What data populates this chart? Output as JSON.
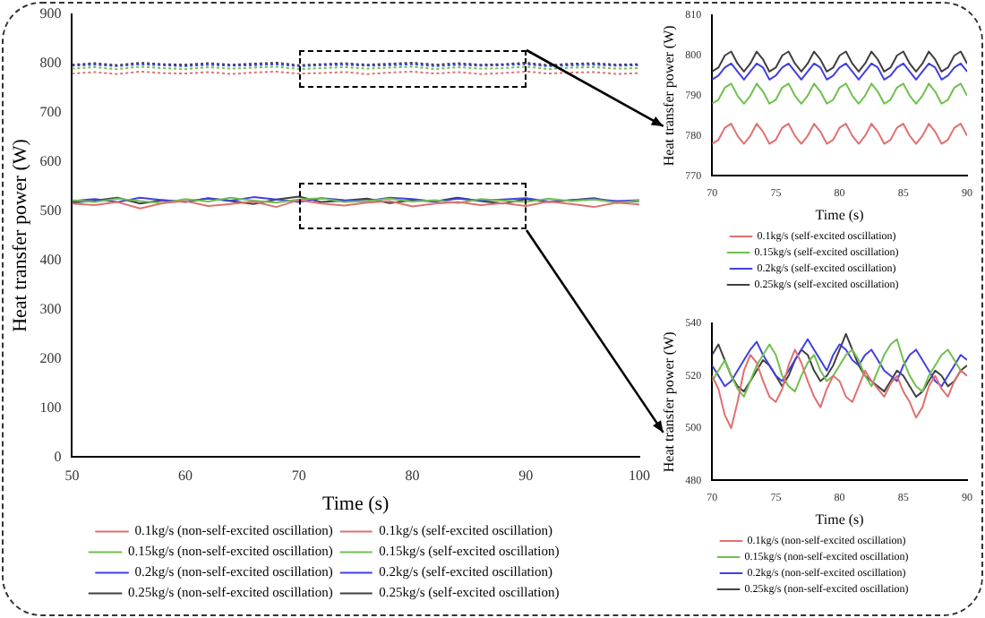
{
  "chart_data": [
    {
      "type": "line",
      "xlabel": "Time (s)",
      "ylabel": "Heat transfer power (W)",
      "xlim": [
        50,
        100
      ],
      "ylim": [
        0,
        900
      ],
      "xticks": [
        50,
        60,
        70,
        80,
        90,
        100
      ],
      "yticks": [
        0,
        100,
        200,
        300,
        400,
        500,
        600,
        700,
        800,
        900
      ],
      "grid": false,
      "legend": "bottom",
      "marker": "none",
      "x": [
        50,
        52,
        54,
        56,
        58,
        60,
        62,
        64,
        66,
        68,
        70,
        72,
        74,
        76,
        78,
        80,
        82,
        84,
        86,
        88,
        90,
        92,
        94,
        96,
        98,
        100
      ],
      "series": [
        {
          "name": "0.1kg/s (non-self-excited oscillation)",
          "color": "#e07070",
          "line_style": "solid",
          "values": [
            515,
            512,
            518,
            505,
            516,
            520,
            510,
            514,
            519,
            508,
            522,
            515,
            511,
            517,
            520,
            509,
            515,
            518,
            512,
            516,
            510,
            519,
            514,
            508,
            517,
            513
          ]
        },
        {
          "name": "0.1kg/s (self-excited oscillation)",
          "color": "#e07070",
          "line_style": "dotted",
          "values": [
            779,
            782,
            778,
            783,
            780,
            779,
            782,
            778,
            781,
            783,
            779,
            780,
            782,
            778,
            781,
            783,
            779,
            782,
            778,
            780,
            783,
            779,
            781,
            782,
            778,
            780
          ]
        },
        {
          "name": "0.15kg/s (non-self-excited oscillation)",
          "color": "#70c050",
          "line_style": "solid",
          "values": [
            522,
            518,
            525,
            520,
            516,
            524,
            519,
            527,
            521,
            517,
            523,
            526,
            518,
            520,
            525,
            519,
            522,
            516,
            524,
            521,
            518,
            525,
            520,
            523,
            517,
            521
          ]
        },
        {
          "name": "0.15kg/s (self-excited oscillation)",
          "color": "#70c050",
          "line_style": "dotted",
          "values": [
            789,
            792,
            788,
            793,
            790,
            788,
            792,
            789,
            791,
            793,
            788,
            790,
            792,
            789,
            791,
            793,
            788,
            792,
            789,
            790,
            793,
            788,
            791,
            792,
            789,
            790
          ]
        },
        {
          "name": "0.2kg/s (non-self-excited oscillation)",
          "color": "#4040e0",
          "line_style": "solid",
          "values": [
            520,
            524,
            518,
            527,
            522,
            519,
            525,
            521,
            528,
            523,
            518,
            526,
            522,
            520,
            527,
            524,
            519,
            525,
            521,
            523,
            526,
            519,
            522,
            524,
            520,
            522
          ]
        },
        {
          "name": "0.2kg/s (self-excited oscillation)",
          "color": "#4040e0",
          "line_style": "dotted",
          "values": [
            795,
            797,
            794,
            798,
            796,
            794,
            797,
            795,
            796,
            798,
            794,
            796,
            797,
            795,
            796,
            798,
            794,
            797,
            795,
            796,
            798,
            794,
            796,
            797,
            795,
            796
          ]
        },
        {
          "name": "0.25kg/s (non-self-excited oscillation)",
          "color": "#404040",
          "line_style": "solid",
          "values": [
            517,
            521,
            527,
            515,
            522,
            518,
            526,
            520,
            514,
            523,
            529,
            518,
            521,
            525,
            516,
            522,
            519,
            527,
            520,
            515,
            524,
            518,
            522,
            526,
            517,
            520
          ]
        },
        {
          "name": "0.25kg/s (self-excited oscillation)",
          "color": "#404040",
          "line_style": "dotted",
          "values": [
            797,
            800,
            796,
            801,
            798,
            797,
            800,
            797,
            799,
            801,
            796,
            798,
            800,
            797,
            799,
            801,
            797,
            800,
            797,
            798,
            801,
            796,
            799,
            800,
            797,
            798
          ]
        }
      ]
    },
    {
      "type": "line",
      "xlabel": "Time (s)",
      "ylabel": "Heat transfer power (W)",
      "xlim": [
        70,
        90
      ],
      "ylim": [
        770,
        810
      ],
      "xticks": [
        70,
        75,
        80,
        85,
        90
      ],
      "yticks": [
        770,
        780,
        790,
        800,
        810
      ],
      "grid": false,
      "legend": "bottom",
      "marker": "none",
      "line_style": "solid",
      "x": [
        70,
        70.5,
        71,
        71.5,
        72,
        72.5,
        73,
        73.5,
        74,
        74.5,
        75,
        75.5,
        76,
        76.5,
        77,
        77.5,
        78,
        78.5,
        79,
        79.5,
        80,
        80.5,
        81,
        81.5,
        82,
        82.5,
        83,
        83.5,
        84,
        84.5,
        85,
        85.5,
        86,
        86.5,
        87,
        87.5,
        88,
        88.5,
        89,
        89.5,
        90
      ],
      "series": [
        {
          "name": "0.1kg/s (self-excited oscillation)",
          "color": "#e07070",
          "values": [
            778,
            779,
            782,
            783,
            780,
            778,
            780,
            783,
            781,
            778,
            779,
            782,
            783,
            780,
            778,
            780,
            783,
            781,
            778,
            779,
            782,
            783,
            780,
            778,
            780,
            783,
            781,
            778,
            779,
            782,
            783,
            780,
            778,
            780,
            783,
            781,
            778,
            779,
            782,
            783,
            780
          ]
        },
        {
          "name": "0.15kg/s (self-excited oscillation)",
          "color": "#70c050",
          "values": [
            788,
            789,
            792,
            793,
            790,
            788,
            790,
            793,
            791,
            788,
            789,
            792,
            793,
            790,
            788,
            790,
            793,
            791,
            788,
            789,
            792,
            793,
            790,
            788,
            790,
            793,
            791,
            788,
            789,
            792,
            793,
            790,
            788,
            790,
            793,
            791,
            788,
            789,
            792,
            793,
            790
          ]
        },
        {
          "name": "0.2kg/s (self-excited oscillation)",
          "color": "#4040e0",
          "values": [
            794,
            795,
            797,
            798,
            796,
            794,
            796,
            798,
            797,
            794,
            795,
            797,
            798,
            796,
            794,
            796,
            798,
            797,
            794,
            795,
            797,
            798,
            796,
            794,
            796,
            798,
            797,
            794,
            795,
            797,
            798,
            796,
            794,
            796,
            798,
            797,
            794,
            795,
            797,
            798,
            796
          ]
        },
        {
          "name": "0.25kg/s (self-excited oscillation)",
          "color": "#404040",
          "values": [
            796,
            797,
            800,
            801,
            798,
            796,
            798,
            801,
            799,
            796,
            797,
            800,
            801,
            798,
            796,
            798,
            801,
            799,
            796,
            797,
            800,
            801,
            798,
            796,
            798,
            801,
            799,
            796,
            797,
            800,
            801,
            798,
            796,
            798,
            801,
            799,
            796,
            797,
            800,
            801,
            798
          ]
        }
      ]
    },
    {
      "type": "line",
      "xlabel": "Time (s)",
      "ylabel": "Heat transfer power (W)",
      "xlim": [
        70,
        90
      ],
      "ylim": [
        480,
        540
      ],
      "xticks": [
        70,
        75,
        80,
        85,
        90
      ],
      "yticks": [
        480,
        500,
        520,
        540
      ],
      "grid": false,
      "legend": "bottom",
      "marker": "none",
      "line_style": "solid",
      "x": [
        70,
        70.5,
        71,
        71.5,
        72,
        72.5,
        73,
        73.5,
        74,
        74.5,
        75,
        75.5,
        76,
        76.5,
        77,
        77.5,
        78,
        78.5,
        79,
        79.5,
        80,
        80.5,
        81,
        81.5,
        82,
        82.5,
        83,
        83.5,
        84,
        84.5,
        85,
        85.5,
        86,
        86.5,
        87,
        87.5,
        88,
        88.5,
        89,
        89.5,
        90
      ],
      "series": [
        {
          "name": "0.1kg/s (non-self-excited oscillation)",
          "color": "#e07070",
          "values": [
            520,
            515,
            505,
            500,
            510,
            522,
            528,
            525,
            518,
            512,
            510,
            515,
            524,
            530,
            525,
            518,
            512,
            508,
            515,
            520,
            518,
            512,
            510,
            516,
            522,
            518,
            515,
            512,
            517,
            520,
            514,
            510,
            504,
            508,
            516,
            520,
            515,
            512,
            518,
            522,
            520
          ]
        },
        {
          "name": "0.15kg/s (non-self-excited oscillation)",
          "color": "#70c050",
          "values": [
            518,
            522,
            526,
            520,
            515,
            512,
            518,
            524,
            528,
            532,
            528,
            520,
            516,
            514,
            520,
            525,
            528,
            522,
            518,
            520,
            524,
            528,
            530,
            526,
            520,
            516,
            522,
            528,
            532,
            534,
            526,
            520,
            516,
            514,
            520,
            524,
            528,
            530,
            526,
            522,
            520
          ]
        },
        {
          "name": "0.2kg/s (non-self-excited oscillation)",
          "color": "#4040e0",
          "values": [
            524,
            520,
            516,
            518,
            522,
            526,
            530,
            533,
            528,
            524,
            520,
            518,
            522,
            526,
            530,
            534,
            530,
            526,
            522,
            528,
            532,
            530,
            526,
            524,
            528,
            530,
            526,
            522,
            520,
            518,
            524,
            528,
            530,
            526,
            522,
            518,
            516,
            520,
            524,
            528,
            526
          ]
        },
        {
          "name": "0.25kg/s (non-self-excited oscillation)",
          "color": "#404040",
          "values": [
            528,
            532,
            526,
            520,
            516,
            514,
            518,
            522,
            526,
            524,
            520,
            516,
            520,
            526,
            530,
            528,
            522,
            518,
            520,
            524,
            530,
            536,
            530,
            524,
            520,
            518,
            516,
            514,
            518,
            522,
            520,
            516,
            512,
            514,
            518,
            522,
            520,
            516,
            518,
            522,
            524
          ]
        }
      ]
    }
  ]
}
